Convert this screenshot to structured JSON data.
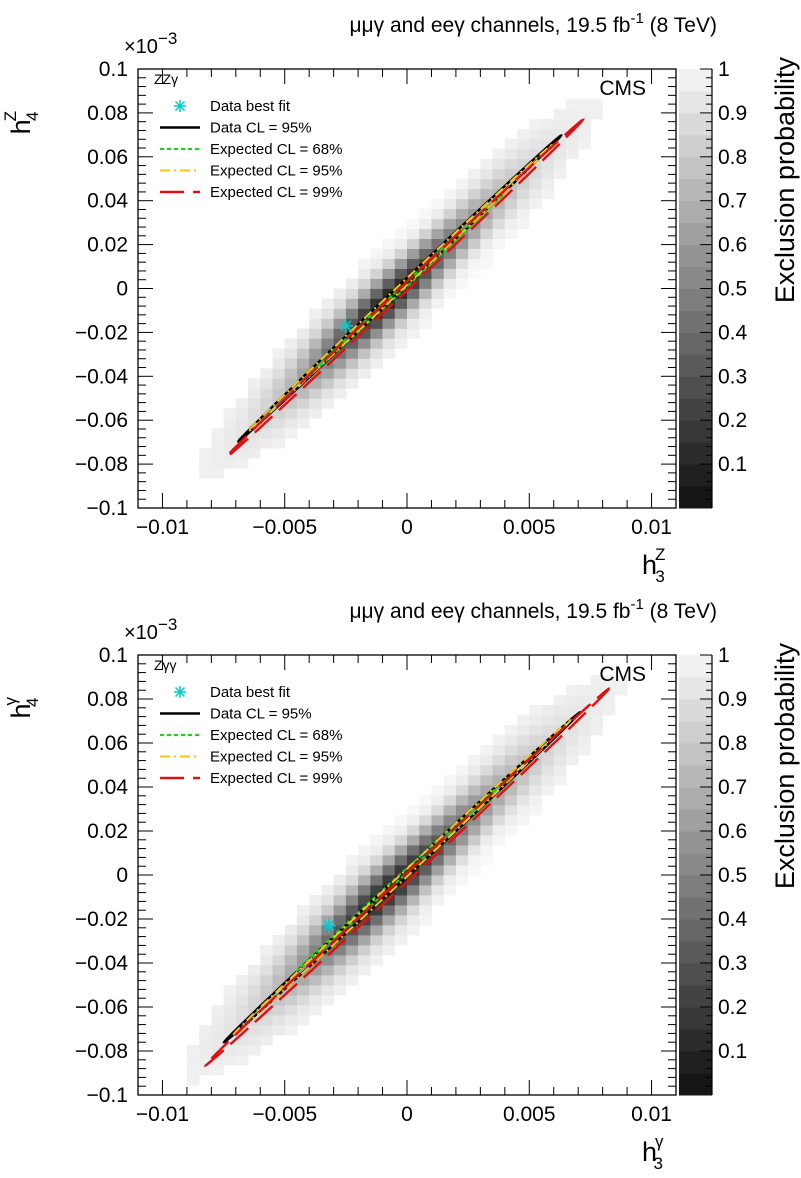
{
  "chart_data": [
    {
      "type": "heatmap",
      "title": "μμγ and eeγ channels, 19.5 fb⁻¹ (8 TeV)",
      "title_parts": [
        "μμγ and eeγ channels, 19.5 fb",
        "-1",
        " (8 TeV)"
      ],
      "process_label": "ZZγ",
      "experiment": "CMS",
      "xlabel": {
        "base": "h",
        "sub": "3",
        "sup": "Z"
      },
      "ylabel": {
        "base": "h",
        "sub": "4",
        "sup": "Z"
      },
      "y_multiplier": "×10⁻³",
      "y_multiplier_parts": [
        "×10",
        "−3"
      ],
      "xlim": [
        -0.011,
        0.011
      ],
      "ylim": [
        -0.1,
        0.1
      ],
      "x_ticks": [
        -0.01,
        -0.005,
        0,
        0.005,
        0.01
      ],
      "x_tick_labels": [
        "−0.01",
        "−0.005",
        "0",
        "0.005",
        "0.01"
      ],
      "y_ticks": [
        -0.1,
        -0.08,
        -0.06,
        -0.04,
        -0.02,
        0,
        0.02,
        0.04,
        0.06,
        0.08,
        0.1
      ],
      "y_tick_labels": [
        "−0.1",
        "−0.08",
        "−0.06",
        "−0.04",
        "−0.02",
        "0",
        "0.02",
        "0.04",
        "0.06",
        "0.08",
        "0.1"
      ],
      "colorbar": {
        "title": "Exclusion probability",
        "range": [
          0,
          1
        ],
        "ticks": [
          0.1,
          0.2,
          0.3,
          0.4,
          0.5,
          0.6,
          0.7,
          0.8,
          0.9,
          1
        ],
        "tick_labels": [
          "0.1",
          "0.2",
          "0.3",
          "0.4",
          "0.5",
          "0.6",
          "0.7",
          "0.8",
          "0.9",
          "1"
        ]
      },
      "best_fit": {
        "x": -0.0025,
        "y": -0.017
      },
      "legend": [
        {
          "label": "Data best fit",
          "style": "marker",
          "color": "#00cccc"
        },
        {
          "label": "Data CL = 95%",
          "style": "solid",
          "color": "#000000"
        },
        {
          "label": "Expected CL = 68%",
          "style": "dotted",
          "color": "#22cc22"
        },
        {
          "label": "Expected CL = 95%",
          "style": "dashdot",
          "color": "#f5c518"
        },
        {
          "label": "Expected CL = 99%",
          "style": "longdash",
          "color": "#e01010"
        }
      ],
      "contours": [
        {
          "name": "Data CL = 95%",
          "cx": -0.0003,
          "cy": 0.0,
          "a": 0.0068,
          "b": 0.0079,
          "rho": 0.95
        },
        {
          "name": "Expected CL = 68%",
          "cx": -0.0002,
          "cy": 0.0,
          "a": 0.0042,
          "b": 0.0048,
          "rho": 0.95
        },
        {
          "name": "Expected CL = 95%",
          "cx": -0.0003,
          "cy": 0.0,
          "a": 0.0064,
          "b": 0.0074,
          "rho": 0.95
        },
        {
          "name": "Expected CL = 99%",
          "cx": -0.0001,
          "cy": 0.0,
          "a": 0.0075,
          "b": 0.0087,
          "rho": 0.95
        }
      ]
    },
    {
      "type": "heatmap",
      "title": "μμγ and eeγ channels, 19.5 fb⁻¹ (8 TeV)",
      "title_parts": [
        "μμγ and eeγ channels, 19.5 fb",
        "-1",
        " (8 TeV)"
      ],
      "process_label": "Zγγ",
      "experiment": "CMS",
      "xlabel": {
        "base": "h",
        "sub": "3",
        "sup": "γ"
      },
      "ylabel": {
        "base": "h",
        "sub": "4",
        "sup": "γ"
      },
      "y_multiplier": "×10⁻³",
      "y_multiplier_parts": [
        "×10",
        "−3"
      ],
      "xlim": [
        -0.011,
        0.011
      ],
      "ylim": [
        -0.1,
        0.1
      ],
      "x_ticks": [
        -0.01,
        -0.005,
        0,
        0.005,
        0.01
      ],
      "x_tick_labels": [
        "−0.01",
        "−0.005",
        "0",
        "0.005",
        "0.01"
      ],
      "y_ticks": [
        -0.1,
        -0.08,
        -0.06,
        -0.04,
        -0.02,
        0,
        0.02,
        0.04,
        0.06,
        0.08,
        0.1
      ],
      "y_tick_labels": [
        "−0.1",
        "−0.08",
        "−0.06",
        "−0.04",
        "−0.02",
        "0",
        "0.02",
        "0.04",
        "0.06",
        "0.08",
        "0.1"
      ],
      "colorbar": {
        "title": "Exclusion probability",
        "range": [
          0,
          1
        ],
        "ticks": [
          0.1,
          0.2,
          0.3,
          0.4,
          0.5,
          0.6,
          0.7,
          0.8,
          0.9,
          1
        ],
        "tick_labels": [
          "0.1",
          "0.2",
          "0.3",
          "0.4",
          "0.5",
          "0.6",
          "0.7",
          "0.8",
          "0.9",
          "1"
        ]
      },
      "best_fit": {
        "x": -0.0032,
        "y": -0.023
      },
      "legend": [
        {
          "label": "Data best fit",
          "style": "marker",
          "color": "#00cccc"
        },
        {
          "label": "Data CL = 95%",
          "style": "solid",
          "color": "#000000"
        },
        {
          "label": "Expected CL = 68%",
          "style": "dotted",
          "color": "#22cc22"
        },
        {
          "label": "Expected CL = 95%",
          "style": "dashdot",
          "color": "#f5c518"
        },
        {
          "label": "Expected CL = 99%",
          "style": "longdash",
          "color": "#e01010"
        }
      ],
      "contours": [
        {
          "name": "Data CL = 95%",
          "cx": -0.0002,
          "cy": -0.001,
          "a": 0.0075,
          "b": 0.0085,
          "rho": 0.95
        },
        {
          "name": "Expected CL = 68%",
          "cx": -0.0002,
          "cy": 0.0,
          "a": 0.0044,
          "b": 0.0049,
          "rho": 0.95
        },
        {
          "name": "Expected CL = 95%",
          "cx": -0.0002,
          "cy": -0.001,
          "a": 0.0071,
          "b": 0.0081,
          "rho": 0.95
        },
        {
          "name": "Expected CL = 99%",
          "cx": 0.0,
          "cy": -0.001,
          "a": 0.0085,
          "b": 0.0097,
          "rho": 0.95
        }
      ]
    }
  ]
}
